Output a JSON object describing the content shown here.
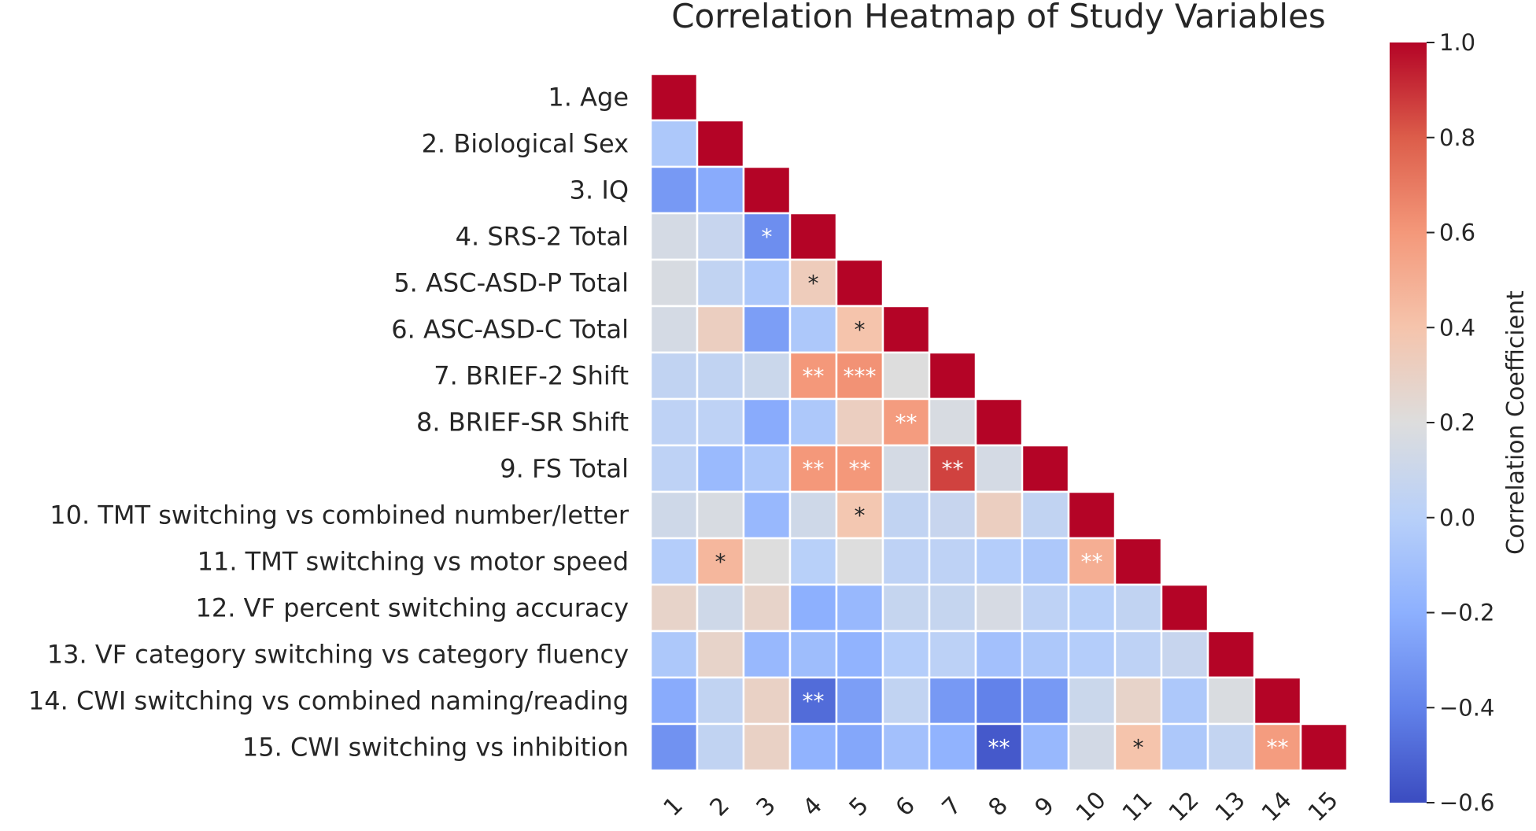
{
  "chart_data": {
    "type": "heatmap",
    "title": "Correlation Heatmap of Study Variables",
    "row_labels": [
      "1. Age",
      "2. Biological Sex",
      "3. IQ",
      "4. SRS-2 Total",
      "5. ASC-ASD-P Total",
      "6. ASC-ASD-C Total",
      "7. BRIEF-2 Shift",
      "8. BRIEF-SR Shift",
      "9. FS Total",
      "10. TMT switching vs combined number/letter",
      "11. TMT switching vs motor speed",
      "12. VF percent switching accuracy",
      "13. VF category switching vs category fluency",
      "14. CWI switching vs combined naming/reading",
      "15. CWI switching vs inhibition"
    ],
    "col_labels": [
      "1",
      "2",
      "3",
      "4",
      "5",
      "6",
      "7",
      "8",
      "9",
      "10",
      "11",
      "12",
      "13",
      "14",
      "15"
    ],
    "matrix": [
      [
        1.0
      ],
      [
        -0.05,
        1.0
      ],
      [
        -0.3,
        -0.22,
        1.0
      ],
      [
        0.15,
        0.08,
        -0.35,
        1.0
      ],
      [
        0.17,
        0.05,
        -0.05,
        0.34,
        1.0
      ],
      [
        0.15,
        0.32,
        -0.28,
        -0.05,
        0.4,
        1.0
      ],
      [
        0.05,
        0.05,
        0.1,
        0.6,
        0.62,
        0.2,
        1.0
      ],
      [
        0.03,
        0.03,
        -0.22,
        -0.05,
        0.32,
        0.58,
        0.17,
        1.0
      ],
      [
        0.03,
        -0.14,
        -0.05,
        0.6,
        0.6,
        0.15,
        0.86,
        0.15,
        1.0
      ],
      [
        0.12,
        0.17,
        -0.15,
        0.12,
        0.38,
        0.05,
        0.08,
        0.32,
        0.05,
        1.0
      ],
      [
        -0.02,
        0.46,
        0.2,
        0.0,
        0.2,
        0.03,
        0.03,
        -0.02,
        -0.05,
        0.5,
        1.0
      ],
      [
        0.28,
        0.12,
        0.28,
        -0.2,
        -0.15,
        0.07,
        0.07,
        0.16,
        0.03,
        0.0,
        0.05,
        1.0
      ],
      [
        -0.05,
        0.28,
        -0.15,
        -0.12,
        -0.18,
        -0.02,
        0.02,
        -0.1,
        -0.05,
        -0.02,
        0.03,
        0.08,
        1.0
      ],
      [
        -0.22,
        0.05,
        0.3,
        -0.48,
        -0.28,
        0.05,
        -0.3,
        -0.4,
        -0.3,
        0.1,
        0.28,
        -0.05,
        0.18,
        1.0
      ],
      [
        -0.33,
        0.05,
        0.3,
        -0.18,
        -0.24,
        -0.1,
        -0.18,
        -0.55,
        -0.15,
        0.14,
        0.4,
        -0.05,
        0.06,
        0.58,
        1.0
      ]
    ],
    "annotations": [
      {
        "row": 4,
        "col": 3,
        "text": "*"
      },
      {
        "row": 5,
        "col": 4,
        "text": "*"
      },
      {
        "row": 6,
        "col": 5,
        "text": "*"
      },
      {
        "row": 7,
        "col": 4,
        "text": "**"
      },
      {
        "row": 7,
        "col": 5,
        "text": "***"
      },
      {
        "row": 8,
        "col": 6,
        "text": "**"
      },
      {
        "row": 9,
        "col": 4,
        "text": "**"
      },
      {
        "row": 9,
        "col": 5,
        "text": "**"
      },
      {
        "row": 9,
        "col": 7,
        "text": "**"
      },
      {
        "row": 10,
        "col": 5,
        "text": "*"
      },
      {
        "row": 11,
        "col": 2,
        "text": "*"
      },
      {
        "row": 11,
        "col": 10,
        "text": "**"
      },
      {
        "row": 14,
        "col": 4,
        "text": "**"
      },
      {
        "row": 15,
        "col": 8,
        "text": "**"
      },
      {
        "row": 15,
        "col": 11,
        "text": "*"
      },
      {
        "row": 15,
        "col": 14,
        "text": "**"
      }
    ],
    "colorbar": {
      "label": "Correlation Coefficient",
      "range": [
        -0.6,
        1.0
      ],
      "ticks": [
        1.0,
        0.8,
        0.6,
        0.4,
        0.2,
        0.0,
        -0.2,
        -0.4,
        -0.6
      ],
      "tick_labels": [
        "1.0",
        "0.8",
        "0.6",
        "0.4",
        "0.2",
        "0.0",
        "−0.2",
        "−0.4",
        "−0.6"
      ]
    },
    "colormap": "coolwarm",
    "colors": {
      "low": "#3b4cc0",
      "mid": "#dddddd",
      "high": "#b40426"
    }
  }
}
